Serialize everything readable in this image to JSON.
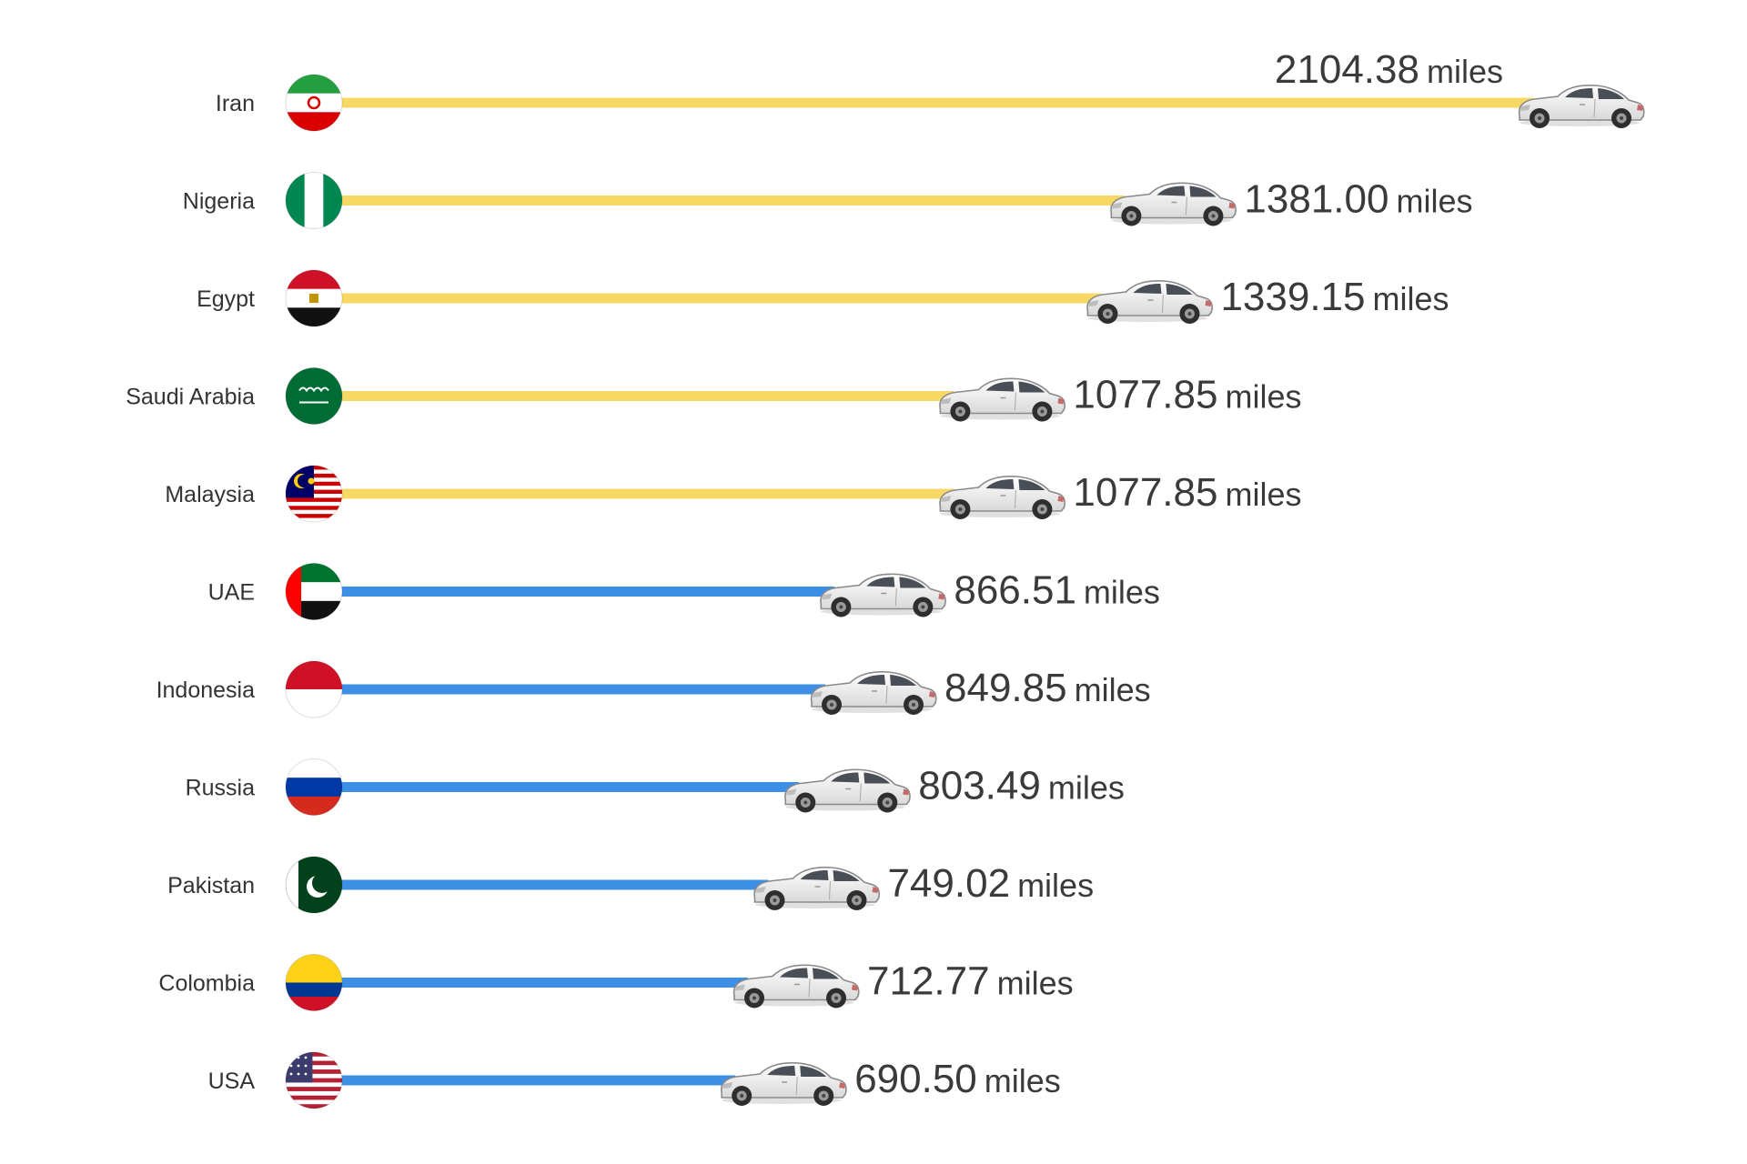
{
  "chart_data": {
    "type": "bar",
    "orientation": "horizontal",
    "unit": "miles",
    "categories": [
      "Iran",
      "Nigeria",
      "Egypt",
      "Saudi Arabia",
      "Malaysia",
      "UAE",
      "Indonesia",
      "Russia",
      "Pakistan",
      "Colombia",
      "USA"
    ],
    "values": [
      2104.38,
      1381.0,
      1339.15,
      1077.85,
      1077.85,
      866.51,
      849.85,
      803.49,
      749.02,
      712.77,
      690.5
    ],
    "value_labels": [
      "2104.38",
      "1381.00",
      "1339.15",
      "1077.85",
      "1077.85",
      "866.51",
      "849.85",
      "803.49",
      "749.02",
      "712.77",
      "690.50"
    ],
    "bar_colors": [
      "#F7D865",
      "#F7D865",
      "#F7D865",
      "#F7D865",
      "#F7D865",
      "#3D8FE6",
      "#3D8FE6",
      "#3D8FE6",
      "#3D8FE6",
      "#3D8FE6",
      "#3D8FE6"
    ],
    "flag_icons": [
      "iran-flag-icon",
      "nigeria-flag-icon",
      "egypt-flag-icon",
      "saudi-arabia-flag-icon",
      "malaysia-flag-icon",
      "uae-flag-icon",
      "indonesia-flag-icon",
      "russia-flag-icon",
      "pakistan-flag-icon",
      "colombia-flag-icon",
      "usa-flag-icon"
    ],
    "marker_icon": "car-icon",
    "title": "",
    "xlabel": "",
    "ylabel": "",
    "grid": false,
    "legend": "none"
  }
}
